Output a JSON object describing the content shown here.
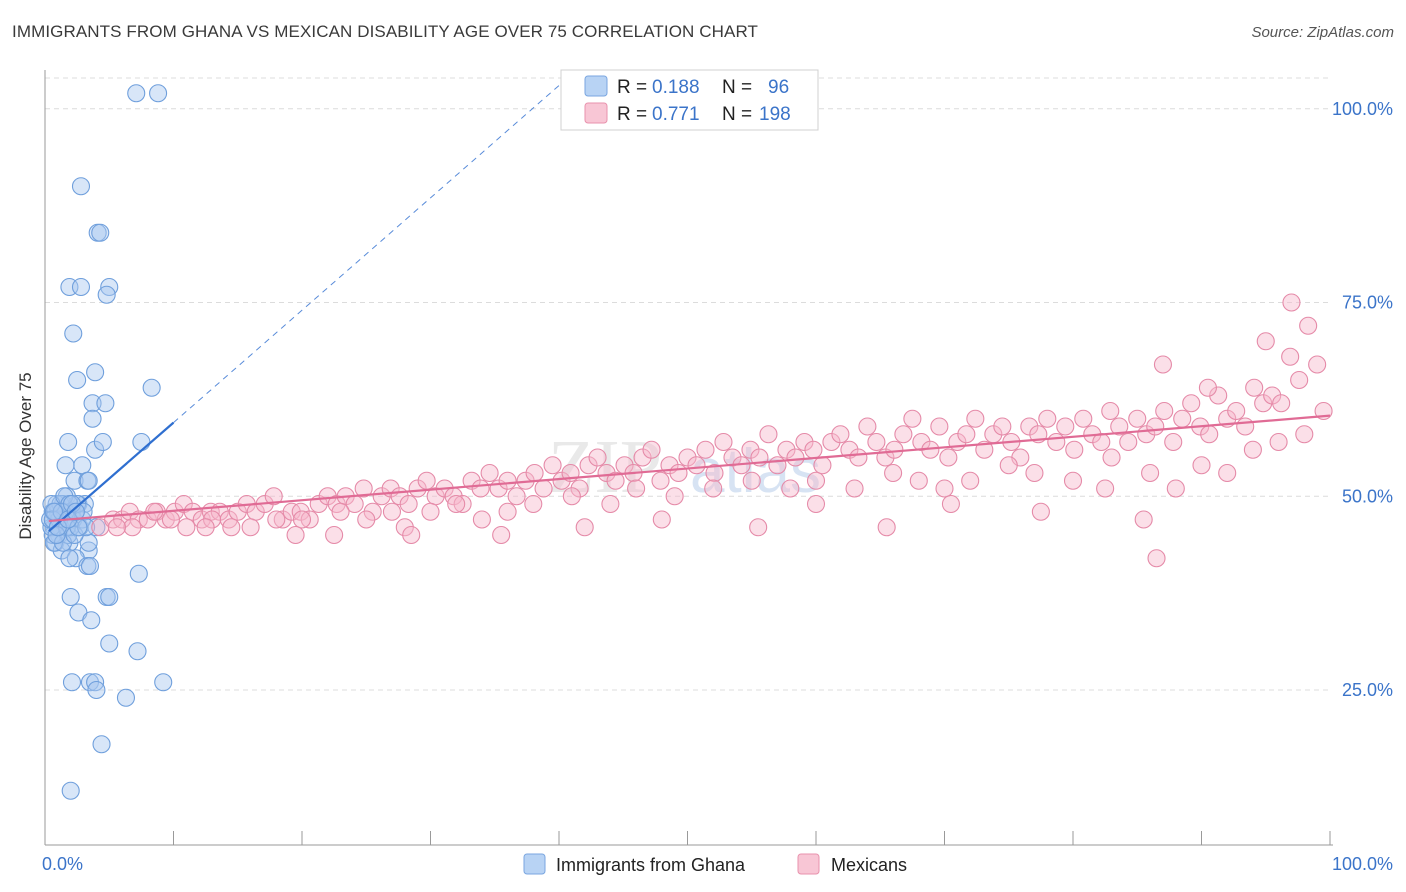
{
  "header": {
    "title": "IMMIGRANTS FROM GHANA VS MEXICAN DISABILITY AGE OVER 75 CORRELATION CHART",
    "source": "Source: ZipAtlas.com"
  },
  "watermark": {
    "zip": "ZIP",
    "atlas": "atlas"
  },
  "colors": {
    "ghana_fill": "#a9c8f0",
    "ghana_stroke": "#6f9fdc",
    "ghana_line": "#2f6fd0",
    "mex_fill": "#f6b9cc",
    "mex_stroke": "#e58aa8",
    "mex_line": "#e06b95",
    "tick_label": "#3b74c9",
    "grid": "#dcdcdc"
  },
  "legend_top": {
    "ghana": {
      "r_label": "R = ",
      "r_value": "0.188",
      "n_label": "N = ",
      "n_value": "96"
    },
    "mex": {
      "r_label": "R = ",
      "r_value": "0.771",
      "n_label": "N = ",
      "n_value": "198"
    }
  },
  "chart_data": {
    "type": "scatter",
    "title": "IMMIGRANTS FROM GHANA VS MEXICAN DISABILITY AGE OVER 75 CORRELATION CHART",
    "xlabel": "",
    "ylabel": "Disability Age Over 75",
    "xlim": [
      0,
      100
    ],
    "ylim": [
      5,
      105
    ],
    "x_tick_labels": [
      "0.0%",
      "100.0%"
    ],
    "y_ticks": [
      25,
      50,
      75,
      100
    ],
    "y_tick_labels": [
      "25.0%",
      "50.0%",
      "75.0%",
      "100.0%"
    ],
    "legend": [
      "Immigrants from Ghana",
      "Mexicans"
    ],
    "series": [
      {
        "name": "Immigrants from Ghana",
        "R": 0.188,
        "N": 96,
        "trend": {
          "x0": 0.3,
          "y0": 45.5,
          "x1": 10.0,
          "y1": 59.5,
          "extend_to_x": 40,
          "extend_to_y": 103
        },
        "points": [
          [
            7.1,
            102
          ],
          [
            8.8,
            102
          ],
          [
            2.8,
            90
          ],
          [
            4.1,
            84
          ],
          [
            4.3,
            84
          ],
          [
            1.9,
            77
          ],
          [
            2.8,
            77
          ],
          [
            5.0,
            77
          ],
          [
            4.8,
            76
          ],
          [
            2.2,
            71
          ],
          [
            2.5,
            65
          ],
          [
            3.9,
            66
          ],
          [
            3.7,
            62
          ],
          [
            4.7,
            62
          ],
          [
            3.7,
            60
          ],
          [
            8.3,
            64
          ],
          [
            7.5,
            57
          ],
          [
            1.8,
            57
          ],
          [
            3.9,
            56
          ],
          [
            4.5,
            57
          ],
          [
            2.9,
            54
          ],
          [
            1.6,
            54
          ],
          [
            2.3,
            52
          ],
          [
            3.3,
            52
          ],
          [
            3.4,
            52
          ],
          [
            1.7,
            50
          ],
          [
            2.6,
            49
          ],
          [
            3.1,
            49
          ],
          [
            1.4,
            49
          ],
          [
            2.1,
            48
          ],
          [
            0.6,
            48
          ],
          [
            1.5,
            47
          ],
          [
            0.9,
            47
          ],
          [
            2.4,
            48
          ],
          [
            0.7,
            46
          ],
          [
            1.2,
            46
          ],
          [
            2.7,
            46
          ],
          [
            1.1,
            45
          ],
          [
            0.8,
            44
          ],
          [
            1.9,
            44
          ],
          [
            1.3,
            43
          ],
          [
            3.4,
            43
          ],
          [
            2.4,
            42
          ],
          [
            4.0,
            46
          ],
          [
            0.6,
            45
          ],
          [
            3.4,
            44
          ],
          [
            1.9,
            42
          ],
          [
            3.3,
            41
          ],
          [
            3.5,
            41
          ],
          [
            7.3,
            40
          ],
          [
            2.0,
            37
          ],
          [
            4.8,
            37
          ],
          [
            5.0,
            37
          ],
          [
            2.6,
            35
          ],
          [
            3.6,
            34
          ],
          [
            5.0,
            31
          ],
          [
            7.2,
            30
          ],
          [
            2.1,
            26
          ],
          [
            3.5,
            26
          ],
          [
            3.9,
            26
          ],
          [
            9.2,
            26
          ],
          [
            4.0,
            25
          ],
          [
            6.3,
            24
          ],
          [
            4.4,
            18
          ],
          [
            2.0,
            12
          ],
          [
            0.5,
            46
          ],
          [
            1.0,
            48
          ],
          [
            1.8,
            45
          ],
          [
            2.2,
            47
          ],
          [
            0.9,
            49
          ],
          [
            1.6,
            48
          ],
          [
            2.9,
            47
          ],
          [
            0.4,
            47
          ],
          [
            1.2,
            49
          ],
          [
            2.5,
            49
          ],
          [
            0.7,
            44
          ],
          [
            1.4,
            44
          ],
          [
            3.0,
            48
          ],
          [
            1.1,
            47
          ],
          [
            2.0,
            46
          ],
          [
            0.8,
            48
          ],
          [
            1.7,
            46
          ],
          [
            2.3,
            45
          ],
          [
            0.5,
            49
          ],
          [
            1.5,
            50
          ],
          [
            3.2,
            46
          ],
          [
            0.6,
            47
          ],
          [
            1.9,
            49
          ],
          [
            2.6,
            46
          ],
          [
            1.3,
            48
          ],
          [
            0.9,
            45
          ],
          [
            2.1,
            49
          ],
          [
            1.0,
            46
          ],
          [
            0.7,
            48
          ],
          [
            1.8,
            47
          ],
          [
            2.4,
            48
          ]
        ]
      },
      {
        "name": "Mexicans",
        "R": 0.771,
        "N": 198,
        "trend": {
          "x0": 0.3,
          "y0": 46.8,
          "x1": 100,
          "y1": 60.4
        },
        "points": [
          [
            4.3,
            46
          ],
          [
            5.3,
            47
          ],
          [
            6.0,
            47
          ],
          [
            6.6,
            48
          ],
          [
            7.3,
            47
          ],
          [
            8.0,
            47
          ],
          [
            8.7,
            48
          ],
          [
            9.4,
            47
          ],
          [
            10.1,
            48
          ],
          [
            10.8,
            49
          ],
          [
            11.5,
            48
          ],
          [
            12.2,
            47
          ],
          [
            12.9,
            48
          ],
          [
            13.6,
            48
          ],
          [
            14.3,
            47
          ],
          [
            15.0,
            48
          ],
          [
            15.7,
            49
          ],
          [
            16.4,
            48
          ],
          [
            17.1,
            49
          ],
          [
            17.8,
            50
          ],
          [
            18.5,
            47
          ],
          [
            19.2,
            48
          ],
          [
            19.9,
            48
          ],
          [
            20.6,
            47
          ],
          [
            21.3,
            49
          ],
          [
            22.0,
            50
          ],
          [
            22.7,
            49
          ],
          [
            23.4,
            50
          ],
          [
            24.1,
            49
          ],
          [
            24.8,
            51
          ],
          [
            25.5,
            48
          ],
          [
            26.2,
            50
          ],
          [
            26.9,
            51
          ],
          [
            27.6,
            50
          ],
          [
            28.3,
            49
          ],
          [
            29.0,
            51
          ],
          [
            29.7,
            52
          ],
          [
            30.4,
            50
          ],
          [
            31.1,
            51
          ],
          [
            31.8,
            50
          ],
          [
            32.5,
            49
          ],
          [
            33.2,
            52
          ],
          [
            33.9,
            51
          ],
          [
            34.6,
            53
          ],
          [
            35.3,
            51
          ],
          [
            36.0,
            52
          ],
          [
            36.7,
            50
          ],
          [
            37.4,
            52
          ],
          [
            38.1,
            53
          ],
          [
            38.8,
            51
          ],
          [
            39.5,
            54
          ],
          [
            40.2,
            52
          ],
          [
            40.9,
            53
          ],
          [
            41.6,
            51
          ],
          [
            42.3,
            54
          ],
          [
            43.0,
            55
          ],
          [
            43.7,
            53
          ],
          [
            44.4,
            52
          ],
          [
            45.1,
            54
          ],
          [
            45.8,
            53
          ],
          [
            46.5,
            55
          ],
          [
            47.2,
            56
          ],
          [
            47.9,
            52
          ],
          [
            48.6,
            54
          ],
          [
            49.3,
            53
          ],
          [
            50.0,
            55
          ],
          [
            50.7,
            54
          ],
          [
            51.4,
            56
          ],
          [
            52.1,
            53
          ],
          [
            52.8,
            57
          ],
          [
            53.5,
            55
          ],
          [
            54.2,
            54
          ],
          [
            54.9,
            56
          ],
          [
            55.6,
            55
          ],
          [
            56.3,
            58
          ],
          [
            57.0,
            54
          ],
          [
            57.7,
            56
          ],
          [
            58.4,
            55
          ],
          [
            59.1,
            57
          ],
          [
            59.8,
            56
          ],
          [
            60.5,
            54
          ],
          [
            61.2,
            57
          ],
          [
            61.9,
            58
          ],
          [
            62.6,
            56
          ],
          [
            63.3,
            55
          ],
          [
            64.0,
            59
          ],
          [
            64.7,
            57
          ],
          [
            65.4,
            55
          ],
          [
            66.1,
            56
          ],
          [
            66.8,
            58
          ],
          [
            67.5,
            60
          ],
          [
            68.2,
            57
          ],
          [
            68.9,
            56
          ],
          [
            69.6,
            59
          ],
          [
            70.3,
            55
          ],
          [
            71.0,
            57
          ],
          [
            71.7,
            58
          ],
          [
            72.4,
            60
          ],
          [
            73.1,
            56
          ],
          [
            73.8,
            58
          ],
          [
            74.5,
            59
          ],
          [
            75.2,
            57
          ],
          [
            75.9,
            55
          ],
          [
            76.6,
            59
          ],
          [
            77.3,
            58
          ],
          [
            78.0,
            60
          ],
          [
            78.7,
            57
          ],
          [
            79.4,
            59
          ],
          [
            80.1,
            56
          ],
          [
            80.8,
            60
          ],
          [
            81.5,
            58
          ],
          [
            82.2,
            57
          ],
          [
            82.9,
            61
          ],
          [
            83.6,
            59
          ],
          [
            84.3,
            57
          ],
          [
            85.0,
            60
          ],
          [
            85.7,
            58
          ],
          [
            86.4,
            59
          ],
          [
            87.1,
            61
          ],
          [
            87.8,
            57
          ],
          [
            88.5,
            60
          ],
          [
            89.2,
            62
          ],
          [
            89.9,
            59
          ],
          [
            90.6,
            58
          ],
          [
            91.3,
            63
          ],
          [
            92.0,
            60
          ],
          [
            92.7,
            61
          ],
          [
            93.4,
            59
          ],
          [
            94.1,
            64
          ],
          [
            94.8,
            62
          ],
          [
            95.5,
            63
          ],
          [
            96.2,
            62
          ],
          [
            96.9,
            68
          ],
          [
            97.6,
            65
          ],
          [
            98.3,
            72
          ],
          [
            99.0,
            67
          ],
          [
            11.0,
            46
          ],
          [
            13.0,
            47
          ],
          [
            16.0,
            46
          ],
          [
            18.0,
            47
          ],
          [
            20.0,
            47
          ],
          [
            23.0,
            48
          ],
          [
            25.0,
            47
          ],
          [
            27.0,
            48
          ],
          [
            28.0,
            46
          ],
          [
            30.0,
            48
          ],
          [
            32.0,
            49
          ],
          [
            34.0,
            47
          ],
          [
            36.0,
            48
          ],
          [
            38.0,
            49
          ],
          [
            41.0,
            50
          ],
          [
            44.0,
            49
          ],
          [
            46.0,
            51
          ],
          [
            49.0,
            50
          ],
          [
            52.0,
            51
          ],
          [
            55.0,
            52
          ],
          [
            58.0,
            51
          ],
          [
            60.0,
            52
          ],
          [
            63.0,
            51
          ],
          [
            66.0,
            53
          ],
          [
            68.0,
            52
          ],
          [
            70.0,
            51
          ],
          [
            72.0,
            52
          ],
          [
            75.0,
            54
          ],
          [
            77.0,
            53
          ],
          [
            80.0,
            52
          ],
          [
            83.0,
            55
          ],
          [
            86.0,
            53
          ],
          [
            88.0,
            51
          ],
          [
            90.0,
            54
          ],
          [
            92.0,
            53
          ],
          [
            94.0,
            56
          ],
          [
            96.0,
            57
          ],
          [
            98.0,
            58
          ],
          [
            99.5,
            61
          ],
          [
            95.0,
            70
          ],
          [
            97.0,
            75
          ],
          [
            87.0,
            67
          ],
          [
            90.5,
            64
          ],
          [
            85.5,
            47
          ],
          [
            86.5,
            42
          ],
          [
            77.5,
            48
          ],
          [
            82.5,
            51
          ],
          [
            60.0,
            49
          ],
          [
            55.5,
            46
          ],
          [
            70.5,
            49
          ],
          [
            65.5,
            46
          ],
          [
            48.0,
            47
          ],
          [
            42.0,
            46
          ],
          [
            35.5,
            45
          ],
          [
            28.5,
            45
          ],
          [
            22.5,
            45
          ],
          [
            19.5,
            45
          ],
          [
            8.5,
            48
          ],
          [
            9.8,
            47
          ],
          [
            12.5,
            46
          ],
          [
            14.5,
            46
          ],
          [
            6.8,
            46
          ],
          [
            5.6,
            46
          ]
        ]
      }
    ]
  }
}
